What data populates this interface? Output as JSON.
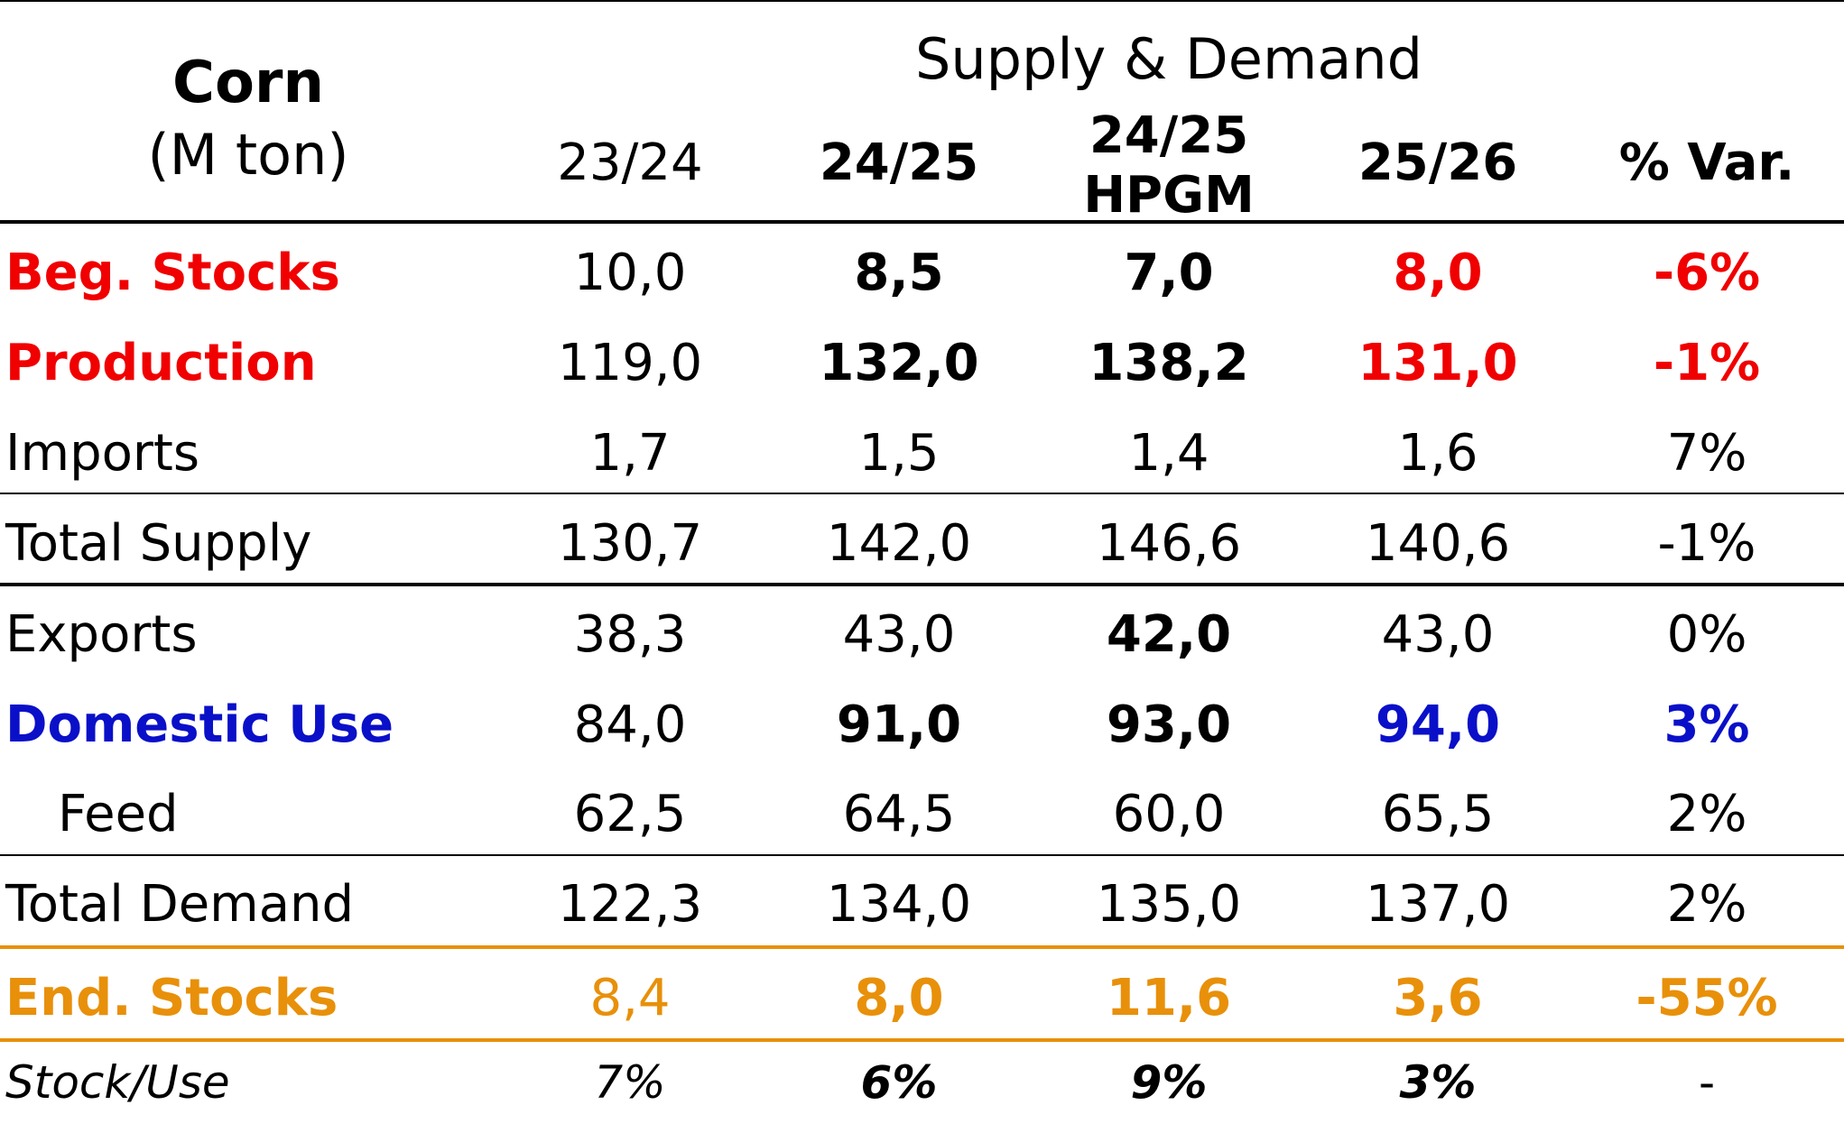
{
  "header": {
    "commodity": "Corn",
    "unit": "(M ton)",
    "group_title": "Supply & Demand",
    "columns": [
      "23/24",
      "24/25",
      "24/25",
      "HPGM",
      "25/26",
      "% Var."
    ]
  },
  "rows": [
    {
      "label": "Beg. Stocks",
      "values": [
        "10,0",
        "8,5",
        "7,0",
        "8,0",
        "-6%"
      ]
    },
    {
      "label": "Production",
      "values": [
        "119,0",
        "132,0",
        "138,2",
        "131,0",
        "-1%"
      ]
    },
    {
      "label": "Imports",
      "values": [
        "1,7",
        "1,5",
        "1,4",
        "1,6",
        "7%"
      ]
    },
    {
      "label": "Total Supply",
      "values": [
        "130,7",
        "142,0",
        "146,6",
        "140,6",
        "-1%"
      ]
    },
    {
      "label": "Exports",
      "values": [
        "38,3",
        "43,0",
        "42,0",
        "43,0",
        "0%"
      ]
    },
    {
      "label": "Domestic Use",
      "values": [
        "84,0",
        "91,0",
        "93,0",
        "94,0",
        "3%"
      ]
    },
    {
      "label": "Feed",
      "values": [
        "62,5",
        "64,5",
        "60,0",
        "65,5",
        "2%"
      ]
    },
    {
      "label": "Total Demand",
      "values": [
        "122,3",
        "134,0",
        "135,0",
        "137,0",
        "2%"
      ]
    },
    {
      "label": "End. Stocks",
      "values": [
        "8,4",
        "8,0",
        "11,6",
        "3,6",
        "-55%"
      ]
    },
    {
      "label": "Stock/Use",
      "values": [
        "7%",
        "6%",
        "9%",
        "3%",
        "-"
      ]
    }
  ],
  "colors": {
    "red": "#f00000",
    "blue": "#0a10c8",
    "orange": "#e8900a"
  }
}
